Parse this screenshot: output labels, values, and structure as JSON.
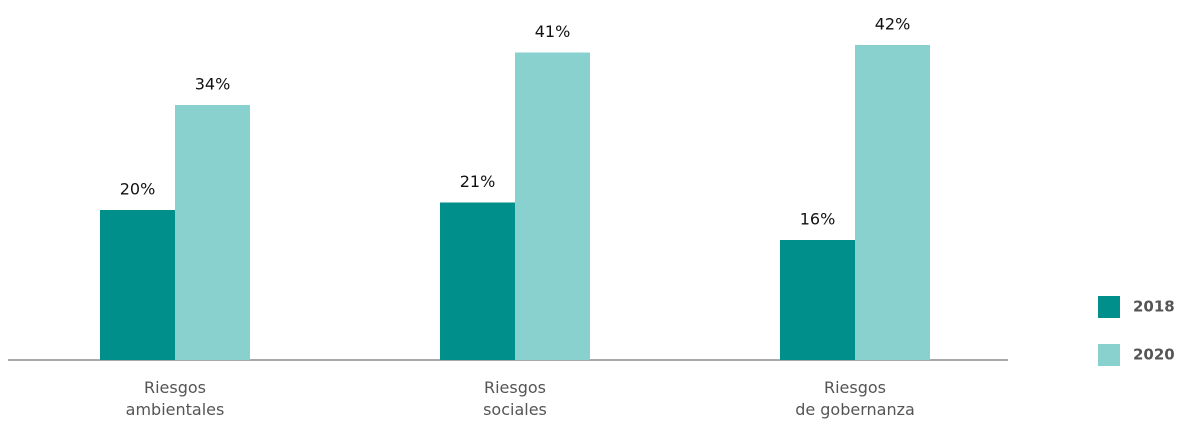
{
  "chart_data": {
    "type": "bar",
    "categories": [
      "Riesgos ambientales",
      "Riesgos sociales",
      "Riesgos de gobernanza"
    ],
    "series": [
      {
        "name": "2018",
        "color": "#008f8a",
        "values": [
          20,
          21,
          16
        ],
        "value_labels": [
          "20%",
          "21%",
          "16%"
        ]
      },
      {
        "name": "2020",
        "color": "#88d1cf",
        "values": [
          34,
          41,
          42
        ],
        "value_labels": [
          "34%",
          "41%",
          "42%"
        ]
      }
    ],
    "legend": "right"
  }
}
